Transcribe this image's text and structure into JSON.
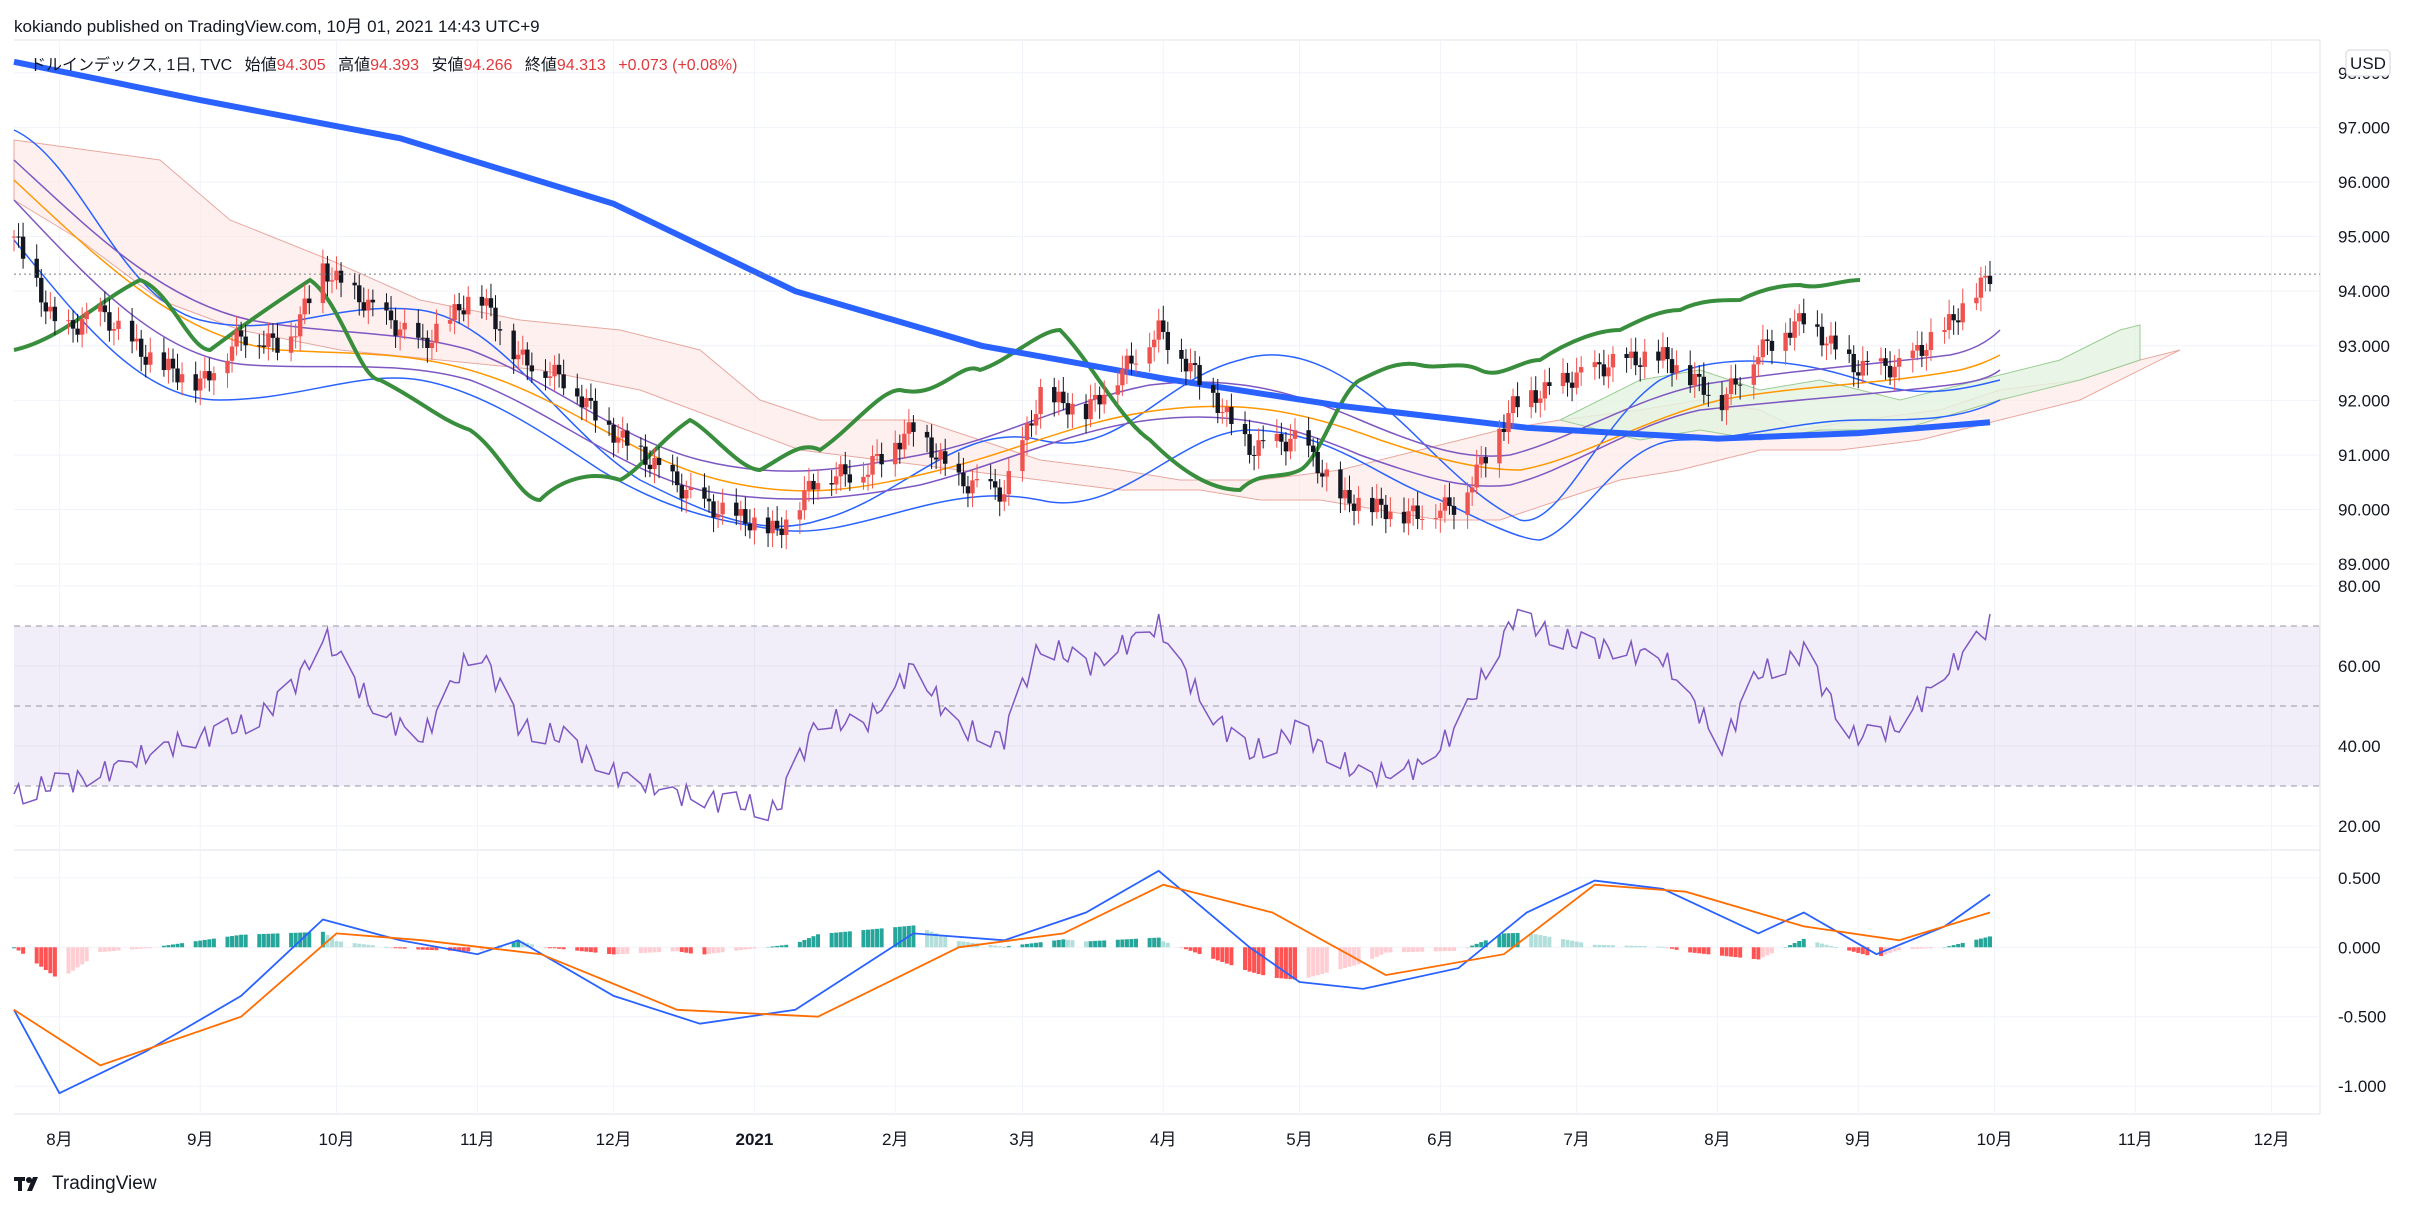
{
  "header": {
    "publish_line": "kokiando published on TradingView.com, 10月 01, 2021 14:43 UTC+9"
  },
  "legend": {
    "symbol": "ドルインデックス, 1日, TVC",
    "open_label": "始値",
    "open": "94.305",
    "high_label": "高値",
    "high": "94.393",
    "low_label": "安値",
    "low": "94.266",
    "close_label": "終値",
    "close": "94.313",
    "change": "+0.073 (+0.08%)"
  },
  "currency_badge": "USD",
  "footer": {
    "brand": "TradingView"
  },
  "colors": {
    "up": "#ef5350",
    "down": "#131722",
    "ma200": "#2962ff",
    "lagging": "#388e3c",
    "bb": "#2962ff",
    "ema": "#ff9800",
    "rsi": "#7e57c2",
    "macd": "#2962ff",
    "signal": "#ff6d00",
    "hist_up": "#26a69a",
    "hist_down": "#ff5252"
  },
  "chart_data": [
    {
      "type": "candlestick",
      "title": "ドルインデックス",
      "timeframe": "1日",
      "ylim": [
        88.6,
        98.6
      ],
      "y_ticks": [
        "98.000",
        "97.000",
        "96.000",
        "95.000",
        "94.000",
        "93.000",
        "92.000",
        "91.000",
        "90.000",
        "89.000"
      ],
      "x_ticks": [
        "8月",
        "9月",
        "10月",
        "11月",
        "12月",
        "2021",
        "2月",
        "3月",
        "4月",
        "5月",
        "6月",
        "7月",
        "8月",
        "9月",
        "10月",
        "11月",
        "12月"
      ],
      "last_price": 94.313,
      "close_path": [
        [
          "2020-07-22",
          95.0
        ],
        [
          "2020-08-01",
          93.2
        ],
        [
          "2020-08-10",
          93.6
        ],
        [
          "2020-08-20",
          92.8
        ],
        [
          "2020-09-01",
          92.3
        ],
        [
          "2020-09-10",
          93.2
        ],
        [
          "2020-09-20",
          93.0
        ],
        [
          "2020-09-28",
          94.4
        ],
        [
          "2020-10-10",
          93.6
        ],
        [
          "2020-10-20",
          93.0
        ],
        [
          "2020-11-01",
          94.0
        ],
        [
          "2020-11-10",
          92.8
        ],
        [
          "2020-11-20",
          92.4
        ],
        [
          "2020-12-01",
          91.4
        ],
        [
          "2020-12-10",
          90.8
        ],
        [
          "2020-12-20",
          90.1
        ],
        [
          "2021-01-06",
          89.6
        ],
        [
          "2021-01-15",
          90.6
        ],
        [
          "2021-01-25",
          90.7
        ],
        [
          "2021-02-05",
          91.5
        ],
        [
          "2021-02-15",
          90.5
        ],
        [
          "2021-02-25",
          90.3
        ],
        [
          "2021-03-05",
          92.1
        ],
        [
          "2021-03-15",
          91.8
        ],
        [
          "2021-03-31",
          93.3
        ],
        [
          "2021-04-10",
          92.3
        ],
        [
          "2021-04-20",
          91.1
        ],
        [
          "2021-05-01",
          91.3
        ],
        [
          "2021-05-10",
          90.2
        ],
        [
          "2021-05-25",
          89.9
        ],
        [
          "2021-06-05",
          90.1
        ],
        [
          "2021-06-17",
          91.9
        ],
        [
          "2021-06-30",
          92.4
        ],
        [
          "2021-07-10",
          92.7
        ],
        [
          "2021-07-20",
          92.8
        ],
        [
          "2021-08-02",
          92.0
        ],
        [
          "2021-08-10",
          92.9
        ],
        [
          "2021-08-20",
          93.5
        ],
        [
          "2021-08-31",
          92.6
        ],
        [
          "2021-09-10",
          92.6
        ],
        [
          "2021-09-20",
          93.3
        ],
        [
          "2021-09-30",
          94.3
        ]
      ],
      "ma200": [
        [
          "2020-07-22",
          98.2
        ],
        [
          "2020-09-01",
          97.5
        ],
        [
          "2020-10-15",
          96.8
        ],
        [
          "2020-12-01",
          95.6
        ],
        [
          "2021-01-10",
          94.0
        ],
        [
          "2021-02-20",
          93.0
        ],
        [
          "2021-04-01",
          92.4
        ],
        [
          "2021-05-10",
          91.9
        ],
        [
          "2021-06-20",
          91.5
        ],
        [
          "2021-08-01",
          91.3
        ],
        [
          "2021-09-01",
          91.4
        ],
        [
          "2021-09-30",
          91.6
        ]
      ]
    },
    {
      "type": "line",
      "title": "RSI",
      "ylim": [
        14,
        80
      ],
      "y_ticks": [
        "80.00",
        "60.00",
        "40.00",
        "20.00"
      ],
      "levels": [
        70,
        50,
        30
      ],
      "series": [
        {
          "name": "",
          "values": [
            [
              "2020-07-22",
              28
            ],
            [
              "2020-08-10",
              33
            ],
            [
              "2020-08-25",
              40
            ],
            [
              "2020-09-10",
              45
            ],
            [
              "2020-09-20",
              52
            ],
            [
              "2020-09-28",
              68
            ],
            [
              "2020-10-10",
              48
            ],
            [
              "2020-10-20",
              42
            ],
            [
              "2020-11-01",
              66
            ],
            [
              "2020-11-10",
              45
            ],
            [
              "2020-11-20",
              42
            ],
            [
              "2020-12-01",
              33
            ],
            [
              "2020-12-15",
              28
            ],
            [
              "2021-01-06",
              24
            ],
            [
              "2021-01-15",
              47
            ],
            [
              "2021-01-25",
              45
            ],
            [
              "2021-02-05",
              60
            ],
            [
              "2021-02-15",
              44
            ],
            [
              "2021-02-25",
              42
            ],
            [
              "2021-03-05",
              66
            ],
            [
              "2021-03-15",
              60
            ],
            [
              "2021-03-31",
              70
            ],
            [
              "2021-04-10",
              50
            ],
            [
              "2021-04-20",
              38
            ],
            [
              "2021-05-01",
              44
            ],
            [
              "2021-05-15",
              32
            ],
            [
              "2021-05-28",
              35
            ],
            [
              "2021-06-05",
              45
            ],
            [
              "2021-06-17",
              72
            ],
            [
              "2021-06-30",
              66
            ],
            [
              "2021-07-10",
              64
            ],
            [
              "2021-07-20",
              62
            ],
            [
              "2021-08-02",
              40
            ],
            [
              "2021-08-10",
              58
            ],
            [
              "2021-08-20",
              63
            ],
            [
              "2021-08-31",
              42
            ],
            [
              "2021-09-10",
              45
            ],
            [
              "2021-09-20",
              58
            ],
            [
              "2021-09-30",
              70
            ]
          ]
        }
      ]
    },
    {
      "type": "line",
      "title": "MACD",
      "ylim": [
        -1.2,
        0.7
      ],
      "y_ticks": [
        "0.500",
        "0.000",
        "-0.500",
        "-1.000"
      ],
      "series": [
        {
          "name": "",
          "values": [
            [
              "2020-07-22",
              -0.45
            ],
            [
              "2020-08-01",
              -1.05
            ],
            [
              "2020-08-20",
              -0.75
            ],
            [
              "2020-09-10",
              -0.35
            ],
            [
              "2020-09-28",
              0.2
            ],
            [
              "2020-10-15",
              0.05
            ],
            [
              "2020-11-01",
              -0.05
            ],
            [
              "2020-11-10",
              0.05
            ],
            [
              "2020-12-01",
              -0.35
            ],
            [
              "2020-12-20",
              -0.55
            ],
            [
              "2021-01-10",
              -0.45
            ],
            [
              "2021-02-05",
              0.1
            ],
            [
              "2021-02-25",
              0.05
            ],
            [
              "2021-03-15",
              0.25
            ],
            [
              "2021-03-31",
              0.55
            ],
            [
              "2021-04-20",
              0.0
            ],
            [
              "2021-05-01",
              -0.25
            ],
            [
              "2021-05-15",
              -0.3
            ],
            [
              "2021-06-05",
              -0.15
            ],
            [
              "2021-06-20",
              0.25
            ],
            [
              "2021-07-05",
              0.48
            ],
            [
              "2021-07-20",
              0.42
            ],
            [
              "2021-08-10",
              0.1
            ],
            [
              "2021-08-20",
              0.25
            ],
            [
              "2021-09-05",
              -0.05
            ],
            [
              "2021-09-20",
              0.15
            ],
            [
              "2021-09-30",
              0.38
            ]
          ]
        },
        {
          "name": "",
          "values": [
            [
              "2020-07-22",
              -0.45
            ],
            [
              "2020-08-10",
              -0.85
            ],
            [
              "2020-09-10",
              -0.5
            ],
            [
              "2020-10-01",
              0.1
            ],
            [
              "2020-10-20",
              0.05
            ],
            [
              "2020-11-15",
              -0.05
            ],
            [
              "2020-12-15",
              -0.45
            ],
            [
              "2021-01-15",
              -0.5
            ],
            [
              "2021-02-15",
              0.0
            ],
            [
              "2021-03-10",
              0.1
            ],
            [
              "2021-04-01",
              0.45
            ],
            [
              "2021-04-25",
              0.25
            ],
            [
              "2021-05-20",
              -0.2
            ],
            [
              "2021-06-15",
              -0.05
            ],
            [
              "2021-07-05",
              0.45
            ],
            [
              "2021-07-25",
              0.4
            ],
            [
              "2021-08-20",
              0.15
            ],
            [
              "2021-09-10",
              0.05
            ],
            [
              "2021-09-30",
              0.25
            ]
          ]
        }
      ]
    }
  ]
}
